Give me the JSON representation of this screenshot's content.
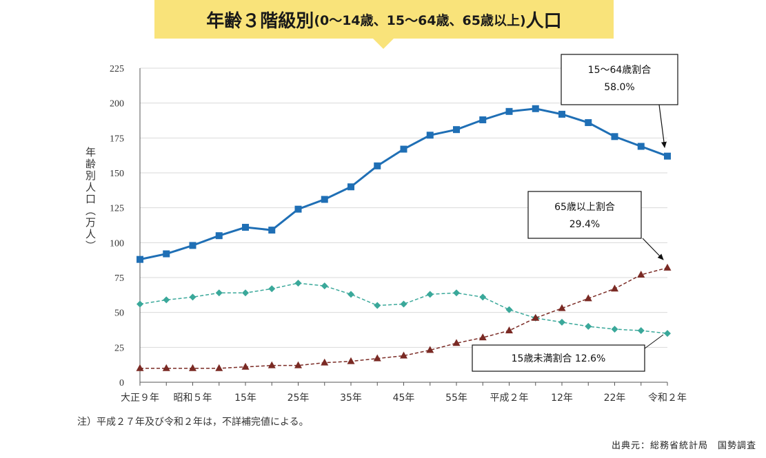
{
  "title": {
    "main": "年齢３階級別",
    "sub": "(0～14歳、15～64歳、65歳以上)",
    "tail": "人口"
  },
  "chart_data": {
    "type": "line",
    "ylabel": "年齢別人口（万人）",
    "ylim": [
      0,
      225
    ],
    "yticks": [
      0,
      25,
      50,
      75,
      100,
      125,
      150,
      175,
      200,
      225
    ],
    "grid": "horizontal",
    "x_tick_labels": [
      "大正９年",
      "昭和５年",
      "15年",
      "25年",
      "35年",
      "45年",
      "55年",
      "平成２年",
      "12年",
      "22年",
      "令和２年"
    ],
    "x_tick_index": [
      0,
      2,
      4,
      6,
      8,
      10,
      12,
      14,
      16,
      18,
      20
    ],
    "series": [
      {
        "name": "15～64歳",
        "color": "#1f6fb5",
        "marker": "square",
        "line": "solid",
        "values": [
          88,
          92,
          98,
          105,
          111,
          109,
          124,
          131,
          140,
          155,
          167,
          177,
          181,
          188,
          194,
          196,
          192,
          186,
          176,
          169,
          162
        ]
      },
      {
        "name": "0～14歳",
        "color": "#3aa89a",
        "marker": "diamond",
        "line": "dashed",
        "values": [
          56,
          59,
          61,
          64,
          64,
          67,
          71,
          69,
          63,
          55,
          56,
          63,
          64,
          61,
          52,
          46,
          43,
          40,
          38,
          37,
          35
        ]
      },
      {
        "name": "65歳以上",
        "color": "#7a2a24",
        "marker": "triangle",
        "line": "dashed",
        "values": [
          10,
          10,
          10,
          10,
          11,
          12,
          12,
          14,
          15,
          17,
          19,
          23,
          28,
          32,
          37,
          46,
          53,
          60,
          67,
          77,
          82
        ]
      }
    ],
    "callouts": [
      {
        "series": 0,
        "line1": "15～64歳割合",
        "line2": "58.0%"
      },
      {
        "series": 2,
        "line1": "65歳以上割合",
        "line2": "29.4%"
      },
      {
        "series": 1,
        "line1": "15歳未満割合 12.6%",
        "line2": ""
      }
    ]
  },
  "note": "注）平成２７年及び令和２年は，不詳補完値による。",
  "source": "出典元：総務省統計局　国勢調査"
}
